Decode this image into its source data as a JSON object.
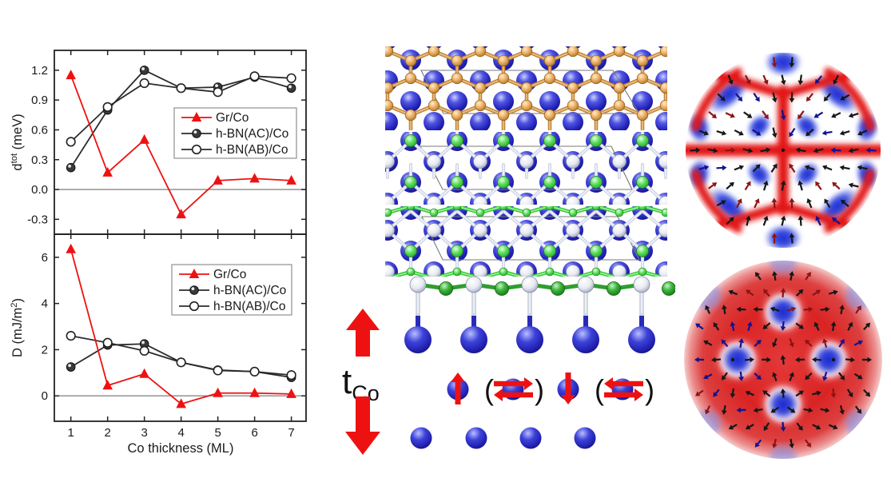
{
  "colors": {
    "series_red": "#ee1111",
    "series_dark": "#2b2b2b",
    "axis": "#222222",
    "zero_line": "#888888",
    "legend_border": "#909090",
    "co_sphere_blue": "#2424bc",
    "graphene_orange": "#dfa458",
    "nitrogen_green": "#3ecc3e",
    "boron_white": "#e9ebf3",
    "side_nitrogen_green": "#2a9a2a",
    "big_arrow_red": "#ee1111",
    "map_red": "#dd2222",
    "map_blue": "#2233cc"
  },
  "chart_data": [
    {
      "type": "line",
      "panel": "top",
      "ylabel": "d^{tot} (meV)",
      "xlabel": "",
      "x": [
        1,
        2,
        3,
        4,
        5,
        6,
        7
      ],
      "xticks": [
        1,
        2,
        3,
        4,
        5,
        6,
        7
      ],
      "xtick_labels": [
        "1",
        "2",
        "3",
        "4",
        "5",
        "6",
        "7"
      ],
      "show_x_tick_labels": false,
      "xlim": [
        0.55,
        7.4
      ],
      "ylim": [
        -0.45,
        1.4
      ],
      "yticks": [
        -0.3,
        0.0,
        0.3,
        0.6,
        0.9,
        1.2
      ],
      "ytick_labels": [
        "-0.3",
        "0.0",
        "0.3",
        "0.6",
        "0.9",
        "1.2"
      ],
      "zero_line": true,
      "grid": false,
      "legend_position": "middle-right",
      "series": [
        {
          "name": "Gr/Co",
          "color": "#ee1111",
          "marker": "triangle",
          "values": [
            1.15,
            0.17,
            0.5,
            -0.25,
            0.09,
            0.11,
            0.09
          ]
        },
        {
          "name": "h-BN(AC)/Co",
          "color": "#2b2b2b",
          "marker": "filled-circle",
          "values": [
            0.22,
            0.8,
            1.2,
            1.02,
            1.03,
            1.13,
            1.02
          ]
        },
        {
          "name": "h-BN(AB)/Co",
          "color": "#2b2b2b",
          "marker": "open-circle",
          "values": [
            0.48,
            0.83,
            1.07,
            1.02,
            0.98,
            1.14,
            1.12
          ]
        }
      ]
    },
    {
      "type": "line",
      "panel": "bottom",
      "ylabel": "D (mJ/m^{2})",
      "xlabel": "Co thickness (ML)",
      "x": [
        1,
        2,
        3,
        4,
        5,
        6,
        7
      ],
      "xticks": [
        1,
        2,
        3,
        4,
        5,
        6,
        7
      ],
      "xtick_labels": [
        "1",
        "2",
        "3",
        "4",
        "5",
        "6",
        "7"
      ],
      "show_x_tick_labels": true,
      "xlim": [
        0.55,
        7.4
      ],
      "ylim": [
        -1.1,
        7.0
      ],
      "yticks": [
        0,
        2,
        4,
        6
      ],
      "ytick_labels": [
        "0",
        "2",
        "4",
        "6"
      ],
      "zero_line": true,
      "grid": false,
      "legend_position": "upper-right",
      "series": [
        {
          "name": "Gr/Co",
          "color": "#ee1111",
          "marker": "triangle",
          "values": [
            6.35,
            0.45,
            0.95,
            -0.35,
            0.12,
            0.12,
            0.08
          ]
        },
        {
          "name": "h-BN(AC)/Co",
          "color": "#2b2b2b",
          "marker": "filled-circle",
          "values": [
            1.25,
            2.2,
            2.25,
            1.45,
            1.12,
            1.05,
            0.8
          ]
        },
        {
          "name": "h-BN(AB)/Co",
          "color": "#2b2b2b",
          "marker": "open-circle",
          "values": [
            2.6,
            2.3,
            1.95,
            1.45,
            1.1,
            1.05,
            0.9
          ]
        }
      ]
    }
  ],
  "structure": {
    "t_symbol": "t",
    "t_subscript": "Co",
    "paren_open": "(",
    "paren_close": ")"
  }
}
